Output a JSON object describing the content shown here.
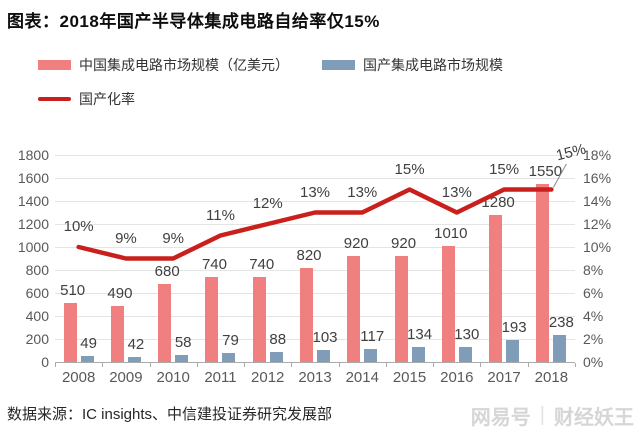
{
  "title": "图表：2018年国产半导体集成电路自给率仅15%",
  "legend": {
    "china_market": "中国集成电路市场规模（亿美元）",
    "domestic_market": "国产集成电路市场规模",
    "localization_rate": "国产化率"
  },
  "colors": {
    "bar_china": "#f08080",
    "bar_domestic": "#7f9db9",
    "line_rate": "#c9201d",
    "grid": "#e4e4e4",
    "axis": "#ababab",
    "axis_text": "#595959",
    "label_text": "#404040",
    "leader": "#8c8c8c",
    "watermark": "#d6d6d6"
  },
  "chart_data": {
    "type": "bar",
    "subtype": "bar+line combo, dual axis",
    "categories": [
      "2008",
      "2009",
      "2010",
      "2011",
      "2012",
      "2013",
      "2014",
      "2015",
      "2016",
      "2017",
      "2018"
    ],
    "series": [
      {
        "name": "中国集成电路市场规模（亿美元）",
        "type": "bar",
        "axis": "left",
        "values": [
          510,
          490,
          680,
          740,
          740,
          820,
          920,
          920,
          1010,
          1280,
          1550
        ]
      },
      {
        "name": "国产集成电路市场规模",
        "type": "bar",
        "axis": "left",
        "values": [
          49,
          42,
          58,
          79,
          88,
          103,
          117,
          134,
          130,
          193,
          238
        ]
      },
      {
        "name": "国产化率",
        "type": "line",
        "axis": "right",
        "values": [
          10,
          9,
          9,
          11,
          12,
          13,
          13,
          15,
          13,
          15,
          15
        ],
        "labels": [
          "10%",
          "9%",
          "9%",
          "11%",
          "12%",
          "13%",
          "13%",
          "15%",
          "13%",
          "15%",
          "15%"
        ]
      }
    ],
    "left_axis": {
      "min": 0,
      "max": 1800,
      "step": 200,
      "ticks": [
        "0",
        "200",
        "400",
        "600",
        "800",
        "1000",
        "1200",
        "1400",
        "1600",
        "1800"
      ]
    },
    "right_axis": {
      "min": 0,
      "max": 18,
      "step": 2,
      "ticks": [
        "0%",
        "2%",
        "4%",
        "6%",
        "8%",
        "10%",
        "12%",
        "14%",
        "16%",
        "18%"
      ]
    },
    "grid": true,
    "legend_position": "top-left",
    "title": "图表：2018年国产半导体集成电路自给率仅15%"
  },
  "footer": {
    "source": "数据来源：IC insights、中信建投证券研究发展部",
    "watermark_brand": "网易号",
    "watermark_sep": "|",
    "watermark_author": "财经妖王"
  }
}
